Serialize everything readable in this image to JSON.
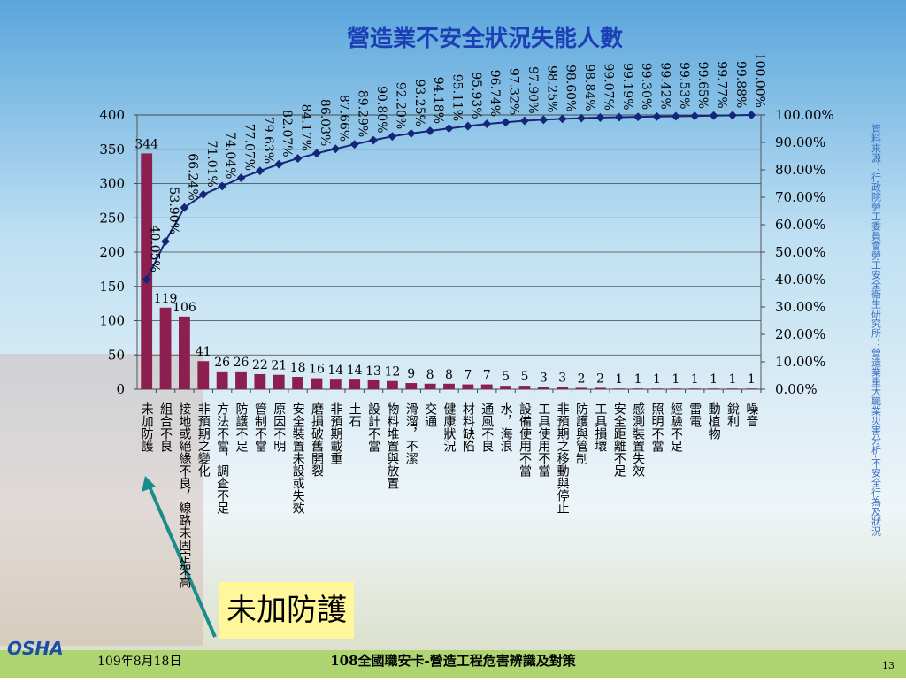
{
  "chart_data": {
    "type": "bar",
    "title": "營造業不安全狀況失能人數",
    "categories": [
      "未加防護",
      "組合不良",
      "接地或絕緣不良，線路未固定架高",
      "非預期之變化",
      "方法不當，調查不足",
      "防護不足",
      "管制不當",
      "原因不明",
      "安全裝置未設或失效",
      "磨損破舊開裂",
      "非預期載重",
      "土石",
      "設計不當",
      "物料堆置與放置",
      "滑溜，不潔",
      "交通",
      "健康狀況",
      "材料缺陷",
      "通風不良",
      "水，海浪",
      "設備使用不當",
      "工具使用不當",
      "非預期之移動與停止",
      "防護與管制",
      "工具損壞",
      "安全距離不足",
      "感測裝置失效",
      "照明不當",
      "經驗不足",
      "雷電",
      "動植物",
      "銳利",
      "噪音"
    ],
    "series": [
      {
        "type": "bar",
        "color": "#8c1f4f",
        "values": [
          344,
          119,
          106,
          41,
          26,
          26,
          22,
          21,
          18,
          16,
          14,
          14,
          13,
          12,
          9,
          8,
          8,
          7,
          7,
          5,
          5,
          3,
          3,
          2,
          2,
          1,
          1,
          1,
          1,
          1,
          1,
          1,
          1
        ]
      },
      {
        "type": "line",
        "axis": "y2",
        "color": "#15267a",
        "values": [
          40.05,
          53.9,
          66.24,
          71.01,
          74.04,
          77.07,
          79.63,
          82.07,
          84.17,
          86.03,
          87.66,
          89.29,
          90.8,
          92.2,
          93.25,
          94.18,
          95.11,
          95.93,
          96.74,
          97.32,
          97.9,
          98.25,
          98.6,
          98.84,
          99.07,
          99.19,
          99.3,
          99.42,
          99.53,
          99.65,
          99.77,
          99.88,
          100.0
        ],
        "value_labels": [
          "40.05%",
          "53.90%",
          "66.24%",
          "71.01%",
          "74.04%",
          "77.07%",
          "79.63%",
          "82.07%",
          "84.17%",
          "86.03%",
          "87.66%",
          "89.29%",
          "90.80%",
          "92.20%",
          "93.25%",
          "94.18%",
          "95.11%",
          "95.93%",
          "96.74%",
          "97.32%",
          "97.90%",
          "98.25%",
          "98.60%",
          "98.84%",
          "99.07%",
          "99.19%",
          "99.30%",
          "99.42%",
          "99.53%",
          "99.65%",
          "99.77%",
          "99.88%",
          "100.00%"
        ]
      }
    ],
    "ylim": [
      0,
      400
    ],
    "yticks": [
      0,
      50,
      100,
      150,
      200,
      250,
      300,
      350,
      400
    ],
    "y2lim": [
      0,
      100
    ],
    "y2ticks": [
      {
        "value": 0,
        "label": "0.00%"
      },
      {
        "value": 10,
        "label": "10.00%"
      },
      {
        "value": 20,
        "label": "20.00%"
      },
      {
        "value": 30,
        "label": "30.00%"
      },
      {
        "value": 40,
        "label": "40.00%"
      },
      {
        "value": 50,
        "label": "50.00%"
      },
      {
        "value": 60,
        "label": "60.00%"
      },
      {
        "value": 70,
        "label": "70.00%"
      },
      {
        "value": 80,
        "label": "80.00%"
      },
      {
        "value": 90,
        "label": "90.00%"
      },
      {
        "value": 100,
        "label": "100.00%"
      }
    ],
    "grid": true
  },
  "slide": {
    "source": "資料來源：行政院勞工委員會勞工安全衛生研究所：營造業重大職業災害分析-不安全行為及狀況",
    "callout": "未加防護",
    "logo": "OSHA",
    "date": "109年8月18日",
    "footer": "108全國職安卡-營造工程危害辨識及對策",
    "page": "13"
  }
}
